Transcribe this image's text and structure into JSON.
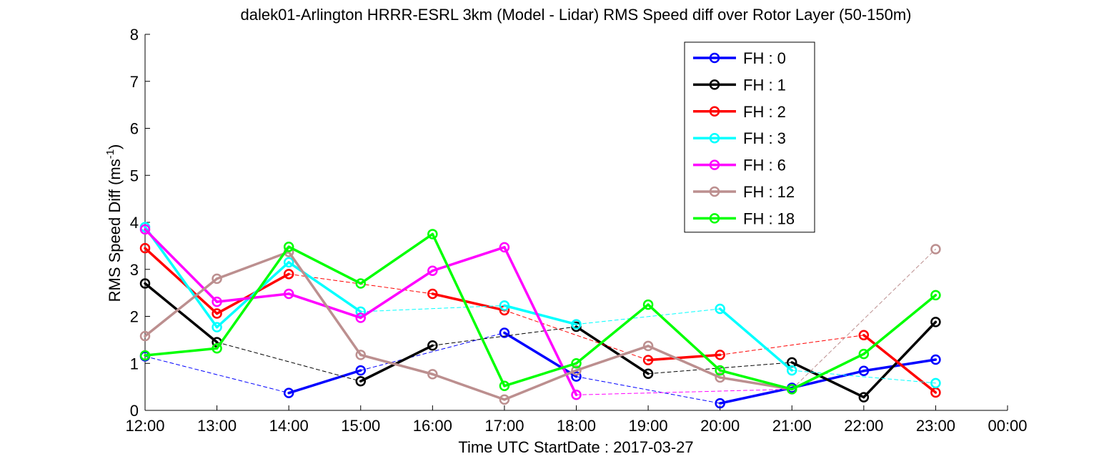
{
  "chart_data": {
    "type": "line",
    "title": "dalek01-Arlington HRRR-ESRL 3km (Model - Lidar) RMS Speed diff over Rotor Layer (50-150m)",
    "xlabel": "Time UTC    StartDate : 2017-03-27",
    "ylabel": "RMS Speed Diff (ms",
    "ylabel_sup": "-1",
    "ylabel_end": ")",
    "x_ticks": [
      "12:00",
      "13:00",
      "14:00",
      "15:00",
      "16:00",
      "17:00",
      "18:00",
      "19:00",
      "20:00",
      "21:00",
      "22:00",
      "23:00",
      "00:00"
    ],
    "x": [
      12,
      13,
      14,
      15,
      16,
      17,
      18,
      19,
      20,
      21,
      22,
      23
    ],
    "xlim": [
      12,
      24
    ],
    "ylim": [
      0,
      8
    ],
    "y_ticks": [
      "0",
      "1",
      "2",
      "3",
      "4",
      "5",
      "6",
      "7",
      "8"
    ],
    "grid": false,
    "legend_position": "top-right",
    "series": [
      {
        "name": "FH : 0",
        "color": "#0000ff",
        "values": [
          1.15,
          null,
          0.37,
          0.85,
          null,
          1.65,
          0.72,
          null,
          0.15,
          0.48,
          0.84,
          1.08
        ]
      },
      {
        "name": "FH : 1",
        "color": "#000000",
        "values": [
          2.7,
          1.45,
          null,
          0.62,
          1.38,
          null,
          1.78,
          0.78,
          null,
          1.02,
          0.28,
          1.88
        ]
      },
      {
        "name": "FH : 2",
        "color": "#ff0000",
        "values": [
          3.45,
          2.06,
          2.9,
          null,
          2.48,
          2.13,
          null,
          1.07,
          1.18,
          null,
          1.6,
          0.38
        ]
      },
      {
        "name": "FH : 3",
        "color": "#00ffff",
        "values": [
          3.9,
          1.77,
          3.15,
          2.1,
          null,
          2.23,
          1.83,
          null,
          2.16,
          0.85,
          null,
          0.58
        ]
      },
      {
        "name": "FH : 6",
        "color": "#ff00ff",
        "values": [
          3.85,
          2.31,
          2.48,
          1.97,
          2.97,
          3.47,
          0.33,
          null,
          null,
          0.45,
          null,
          null
        ]
      },
      {
        "name": "FH : 12",
        "color": "#bc8f8f",
        "values": [
          1.58,
          2.8,
          3.37,
          1.18,
          0.77,
          0.23,
          0.85,
          1.37,
          0.7,
          0.45,
          null,
          3.43
        ]
      },
      {
        "name": "FH : 18",
        "color": "#00ff00",
        "values": [
          1.17,
          1.32,
          3.48,
          2.7,
          3.75,
          0.52,
          1.0,
          2.25,
          0.85,
          0.45,
          1.2,
          2.45
        ]
      }
    ]
  }
}
